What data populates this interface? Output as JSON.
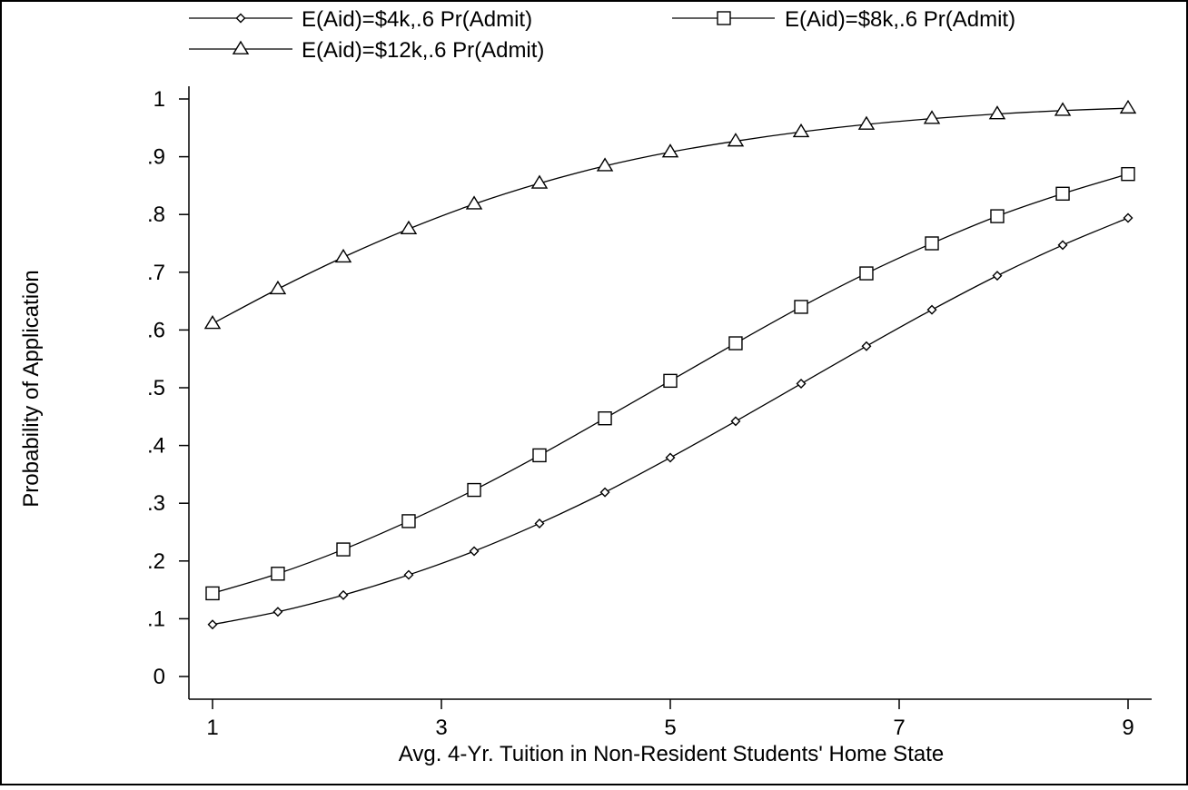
{
  "chart_data": {
    "type": "line",
    "title": "",
    "xlabel": "Avg. 4-Yr. Tuition in Non-Resident Students' Home State",
    "ylabel": "Probability of Application",
    "xlim": [
      1,
      9
    ],
    "ylim": [
      0,
      1
    ],
    "grid": false,
    "legend_placement": "top",
    "x_ticks": [
      1,
      3,
      5,
      7,
      9
    ],
    "x_tick_labels": [
      "1",
      "3",
      "5",
      "7",
      "9"
    ],
    "y_ticks": [
      0,
      0.1,
      0.2,
      0.3,
      0.4,
      0.5,
      0.6,
      0.7,
      0.8,
      0.9,
      1
    ],
    "y_tick_labels": [
      "0",
      ".1",
      ".2",
      ".3",
      ".4",
      ".5",
      ".6",
      ".7",
      ".8",
      ".9",
      "1"
    ],
    "x": [
      1.0,
      1.571,
      2.143,
      2.714,
      3.286,
      3.857,
      4.429,
      5.0,
      5.571,
      6.143,
      6.714,
      7.286,
      7.857,
      8.429,
      9.0
    ],
    "series": [
      {
        "name": "E(Aid)=$4k,.6 Pr(Admit)",
        "marker": "diamond",
        "values": [
          0.09,
          0.112,
          0.141,
          0.176,
          0.217,
          0.265,
          0.319,
          0.379,
          0.442,
          0.507,
          0.572,
          0.635,
          0.694,
          0.747,
          0.794
        ]
      },
      {
        "name": "E(Aid)=$8k,.6 Pr(Admit)",
        "marker": "square",
        "values": [
          0.144,
          0.178,
          0.22,
          0.269,
          0.323,
          0.383,
          0.447,
          0.512,
          0.577,
          0.64,
          0.698,
          0.75,
          0.797,
          0.836,
          0.87
        ]
      },
      {
        "name": "E(Aid)=$12k,.6 Pr(Admit)",
        "marker": "triangle",
        "values": [
          0.611,
          0.671,
          0.726,
          0.775,
          0.818,
          0.854,
          0.884,
          0.908,
          0.927,
          0.943,
          0.956,
          0.966,
          0.974,
          0.98,
          0.984
        ]
      }
    ]
  }
}
